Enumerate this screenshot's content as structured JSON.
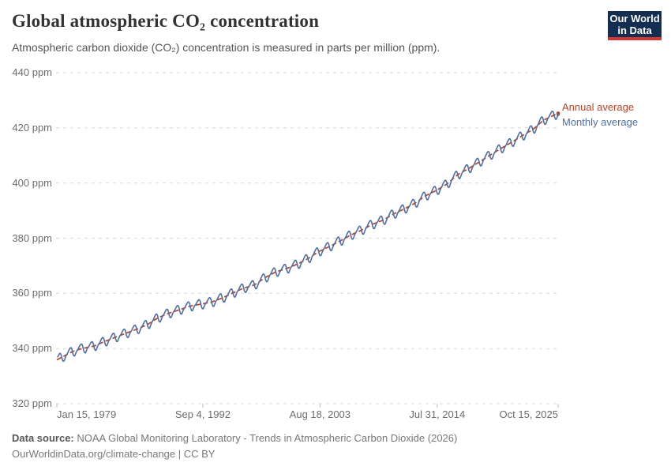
{
  "header": {
    "title": "Global atmospheric CO₂ concentration",
    "subtitle": "Atmospheric carbon dioxide (CO₂) concentration is measured in parts per million (ppm).",
    "logo": {
      "line1": "Our World",
      "line2": "in Data",
      "bg_color": "#142e52",
      "accent_color": "#d43630"
    }
  },
  "chart_data": {
    "type": "line",
    "title": "Global atmospheric CO₂ concentration",
    "xlabel": "",
    "ylabel": "ppm",
    "ylim": [
      320,
      440
    ],
    "xlim_decimal_years": [
      1979.0417,
      2025.875
    ],
    "grid": "horizontal-dashed",
    "legend_position": "right-of-line-ends",
    "y_ticks": [
      {
        "value": 440,
        "label": "440 ppm"
      },
      {
        "value": 420,
        "label": "420 ppm"
      },
      {
        "value": 400,
        "label": "400 ppm"
      },
      {
        "value": 380,
        "label": "380 ppm"
      },
      {
        "value": 360,
        "label": "360 ppm"
      },
      {
        "value": 340,
        "label": "340 ppm"
      },
      {
        "value": 320,
        "label": "320 ppm"
      }
    ],
    "x_ticks": [
      {
        "label": "Jan 15, 1979",
        "t": 1979.0417,
        "align": "left"
      },
      {
        "label": "Sep 4, 1992",
        "t": 1992.677,
        "align": "center"
      },
      {
        "label": "Aug 18, 2003",
        "t": 2003.627,
        "align": "center"
      },
      {
        "label": "Jul 31, 2014",
        "t": 2014.578,
        "align": "center"
      },
      {
        "label": "Oct 15, 2025",
        "t": 2025.875,
        "align": "right"
      }
    ],
    "series": [
      {
        "name": "Annual average",
        "color": "#BA4425",
        "line_style": "dashed",
        "years": [
          1979,
          1980,
          1981,
          1982,
          1983,
          1984,
          1985,
          1986,
          1987,
          1988,
          1989,
          1990,
          1991,
          1992,
          1993,
          1994,
          1995,
          1996,
          1997,
          1998,
          1999,
          2000,
          2001,
          2002,
          2003,
          2004,
          2005,
          2006,
          2007,
          2008,
          2009,
          2010,
          2011,
          2012,
          2013,
          2014,
          2015,
          2016,
          2017,
          2018,
          2019,
          2020,
          2021,
          2022,
          2023,
          2024,
          2025
        ],
        "values": [
          336.85,
          338.91,
          340.11,
          340.86,
          342.53,
          344.07,
          345.54,
          346.97,
          348.68,
          351.16,
          352.78,
          354.05,
          355.39,
          356.09,
          356.83,
          358.33,
          360.17,
          361.93,
          363.04,
          365.7,
          367.79,
          368.96,
          370.57,
          372.58,
          375.14,
          376.95,
          378.98,
          381.15,
          382.9,
          385.02,
          386.5,
          388.76,
          390.63,
          392.65,
          395.4,
          397.34,
          399.65,
          403.06,
          405.22,
          407.61,
          410.07,
          412.44,
          414.7,
          417.08,
          419.35,
          422.77,
          424.61
        ]
      },
      {
        "name": "Monthly average",
        "color": "#4E6FA6",
        "line_style": "solid",
        "derivation": "interpolated annual average plus seasonal cycle anomaly, Jan 1979 through Oct 2025",
        "seasonal_cycle_ppm": [
          0.3,
          0.9,
          1.4,
          1.75,
          1.65,
          0.8,
          -0.8,
          -1.7,
          -1.85,
          -1.2,
          -0.45,
          0.0
        ]
      }
    ],
    "legend": [
      {
        "label": "Annual average",
        "color": "#BA4425"
      },
      {
        "label": "Monthly average",
        "color": "#4E6FA6"
      }
    ]
  },
  "footer": {
    "source_label": "Data source:",
    "source_text": "NOAA Global Monitoring Laboratory - Trends in Atmospheric Carbon Dioxide (2026)",
    "link_line": "OurWorldinData.org/climate-change | CC BY"
  }
}
